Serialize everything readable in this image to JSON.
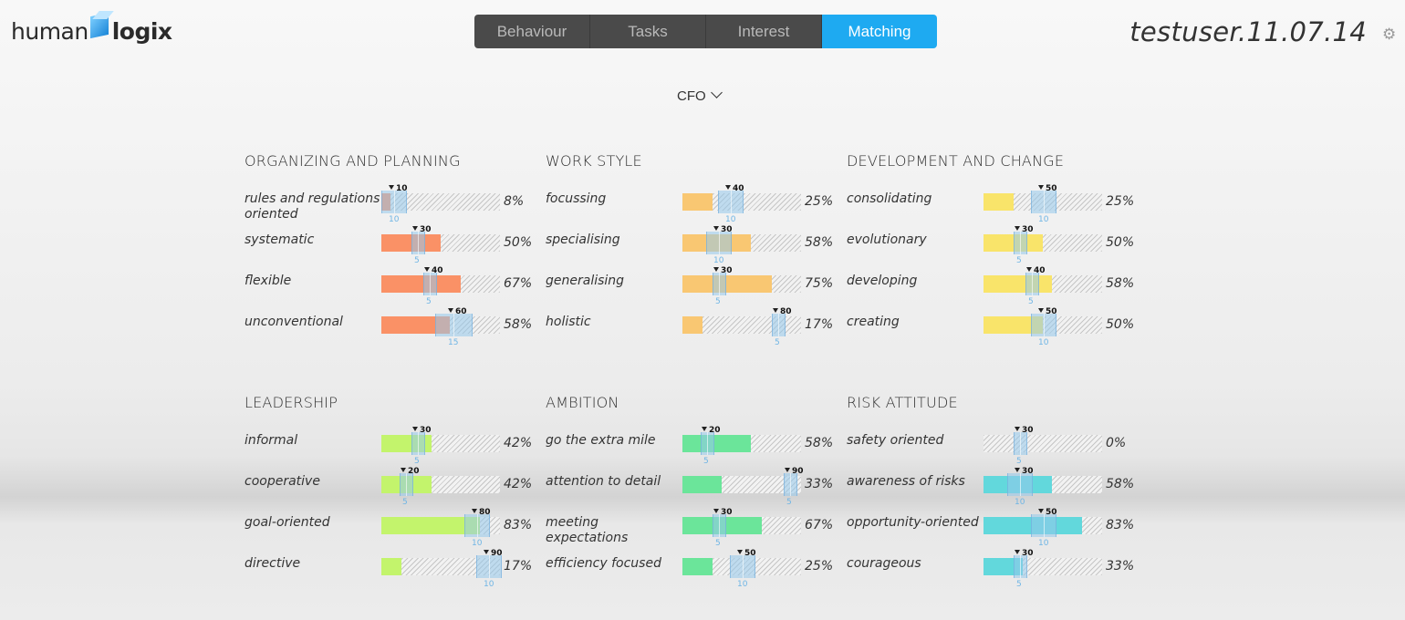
{
  "app": {
    "logo_part1": "human",
    "logo_part2": "logix",
    "user": "testuser.11.07.14"
  },
  "tabs": [
    {
      "label": "Behaviour",
      "active": false
    },
    {
      "label": "Tasks",
      "active": false
    },
    {
      "label": "Interest",
      "active": false
    },
    {
      "label": "Matching",
      "active": true
    }
  ],
  "role_selector": {
    "value": "CFO"
  },
  "sections": [
    {
      "title": "ORGANIZING AND PLANNING",
      "color": "#fa9166",
      "items": [
        {
          "label": "rules and regulations oriented",
          "value": 8,
          "percent": "8%",
          "target": 10,
          "target_label": "10",
          "tolerance": 10,
          "tolerance_label": "10"
        },
        {
          "label": "systematic",
          "value": 50,
          "percent": "50%",
          "target": 30,
          "target_label": "30",
          "tolerance": 5,
          "tolerance_label": "5"
        },
        {
          "label": "flexible",
          "value": 67,
          "percent": "67%",
          "target": 40,
          "target_label": "40",
          "tolerance": 5,
          "tolerance_label": "5"
        },
        {
          "label": "unconventional",
          "value": 58,
          "percent": "58%",
          "target": 60,
          "target_label": "60",
          "tolerance": 15,
          "tolerance_label": "15"
        }
      ]
    },
    {
      "title": "WORK STYLE",
      "color": "#f9c772",
      "items": [
        {
          "label": "focussing",
          "value": 25,
          "percent": "25%",
          "target": 40,
          "target_label": "40",
          "tolerance": 10,
          "tolerance_label": "10"
        },
        {
          "label": "specialising",
          "value": 58,
          "percent": "58%",
          "target": 30,
          "target_label": "30",
          "tolerance": 10,
          "tolerance_label": "10"
        },
        {
          "label": "generalising",
          "value": 75,
          "percent": "75%",
          "target": 30,
          "target_label": "30",
          "tolerance": 5,
          "tolerance_label": "5"
        },
        {
          "label": "holistic",
          "value": 17,
          "percent": "17%",
          "target": 80,
          "target_label": "80",
          "tolerance": 5,
          "tolerance_label": "5"
        }
      ]
    },
    {
      "title": "DEVELOPMENT AND CHANGE",
      "color": "#f9e46a",
      "items": [
        {
          "label": "consolidating",
          "value": 25,
          "percent": "25%",
          "target": 50,
          "target_label": "50",
          "tolerance": 10,
          "tolerance_label": "10"
        },
        {
          "label": "evolutionary",
          "value": 50,
          "percent": "50%",
          "target": 30,
          "target_label": "30",
          "tolerance": 5,
          "tolerance_label": "5"
        },
        {
          "label": "developing",
          "value": 58,
          "percent": "58%",
          "target": 40,
          "target_label": "40",
          "tolerance": 5,
          "tolerance_label": "5"
        },
        {
          "label": "creating",
          "value": 50,
          "percent": "50%",
          "target": 50,
          "target_label": "50",
          "tolerance": 10,
          "tolerance_label": "10"
        }
      ]
    },
    {
      "title": "LEADERSHIP",
      "color": "#c3f46c",
      "items": [
        {
          "label": "informal",
          "value": 42,
          "percent": "42%",
          "target": 30,
          "target_label": "30",
          "tolerance": 5,
          "tolerance_label": "5"
        },
        {
          "label": "cooperative",
          "value": 42,
          "percent": "42%",
          "target": 20,
          "target_label": "20",
          "tolerance": 5,
          "tolerance_label": "5"
        },
        {
          "label": "goal-oriented",
          "value": 83,
          "percent": "83%",
          "target": 80,
          "target_label": "80",
          "tolerance": 10,
          "tolerance_label": "10"
        },
        {
          "label": "directive",
          "value": 17,
          "percent": "17%",
          "target": 90,
          "target_label": "90",
          "tolerance": 10,
          "tolerance_label": "10"
        }
      ]
    },
    {
      "title": "AMBITION",
      "color": "#6be59a",
      "items": [
        {
          "label": "go the extra mile",
          "value": 58,
          "percent": "58%",
          "target": 20,
          "target_label": "20",
          "tolerance": 5,
          "tolerance_label": "5"
        },
        {
          "label": "attention to detail",
          "value": 33,
          "percent": "33%",
          "target": 90,
          "target_label": "90",
          "tolerance": 5,
          "tolerance_label": "5"
        },
        {
          "label": "meeting expectations",
          "value": 67,
          "percent": "67%",
          "target": 30,
          "target_label": "30",
          "tolerance": 5,
          "tolerance_label": "5"
        },
        {
          "label": "efficiency focused",
          "value": 25,
          "percent": "25%",
          "target": 50,
          "target_label": "50",
          "tolerance": 10,
          "tolerance_label": "10"
        }
      ]
    },
    {
      "title": "RISK ATTITUDE",
      "color": "#62d8dc",
      "items": [
        {
          "label": "safety oriented",
          "value": 0,
          "percent": "0%",
          "target": 30,
          "target_label": "30",
          "tolerance": 5,
          "tolerance_label": "5"
        },
        {
          "label": "awareness of risks",
          "value": 58,
          "percent": "58%",
          "target": 30,
          "target_label": "30",
          "tolerance": 10,
          "tolerance_label": "10"
        },
        {
          "label": "opportunity-oriented",
          "value": 83,
          "percent": "83%",
          "target": 50,
          "target_label": "50",
          "tolerance": 10,
          "tolerance_label": "10"
        },
        {
          "label": "courageous",
          "value": 33,
          "percent": "33%",
          "target": 30,
          "target_label": "30",
          "tolerance": 5,
          "tolerance_label": "5"
        }
      ]
    }
  ]
}
